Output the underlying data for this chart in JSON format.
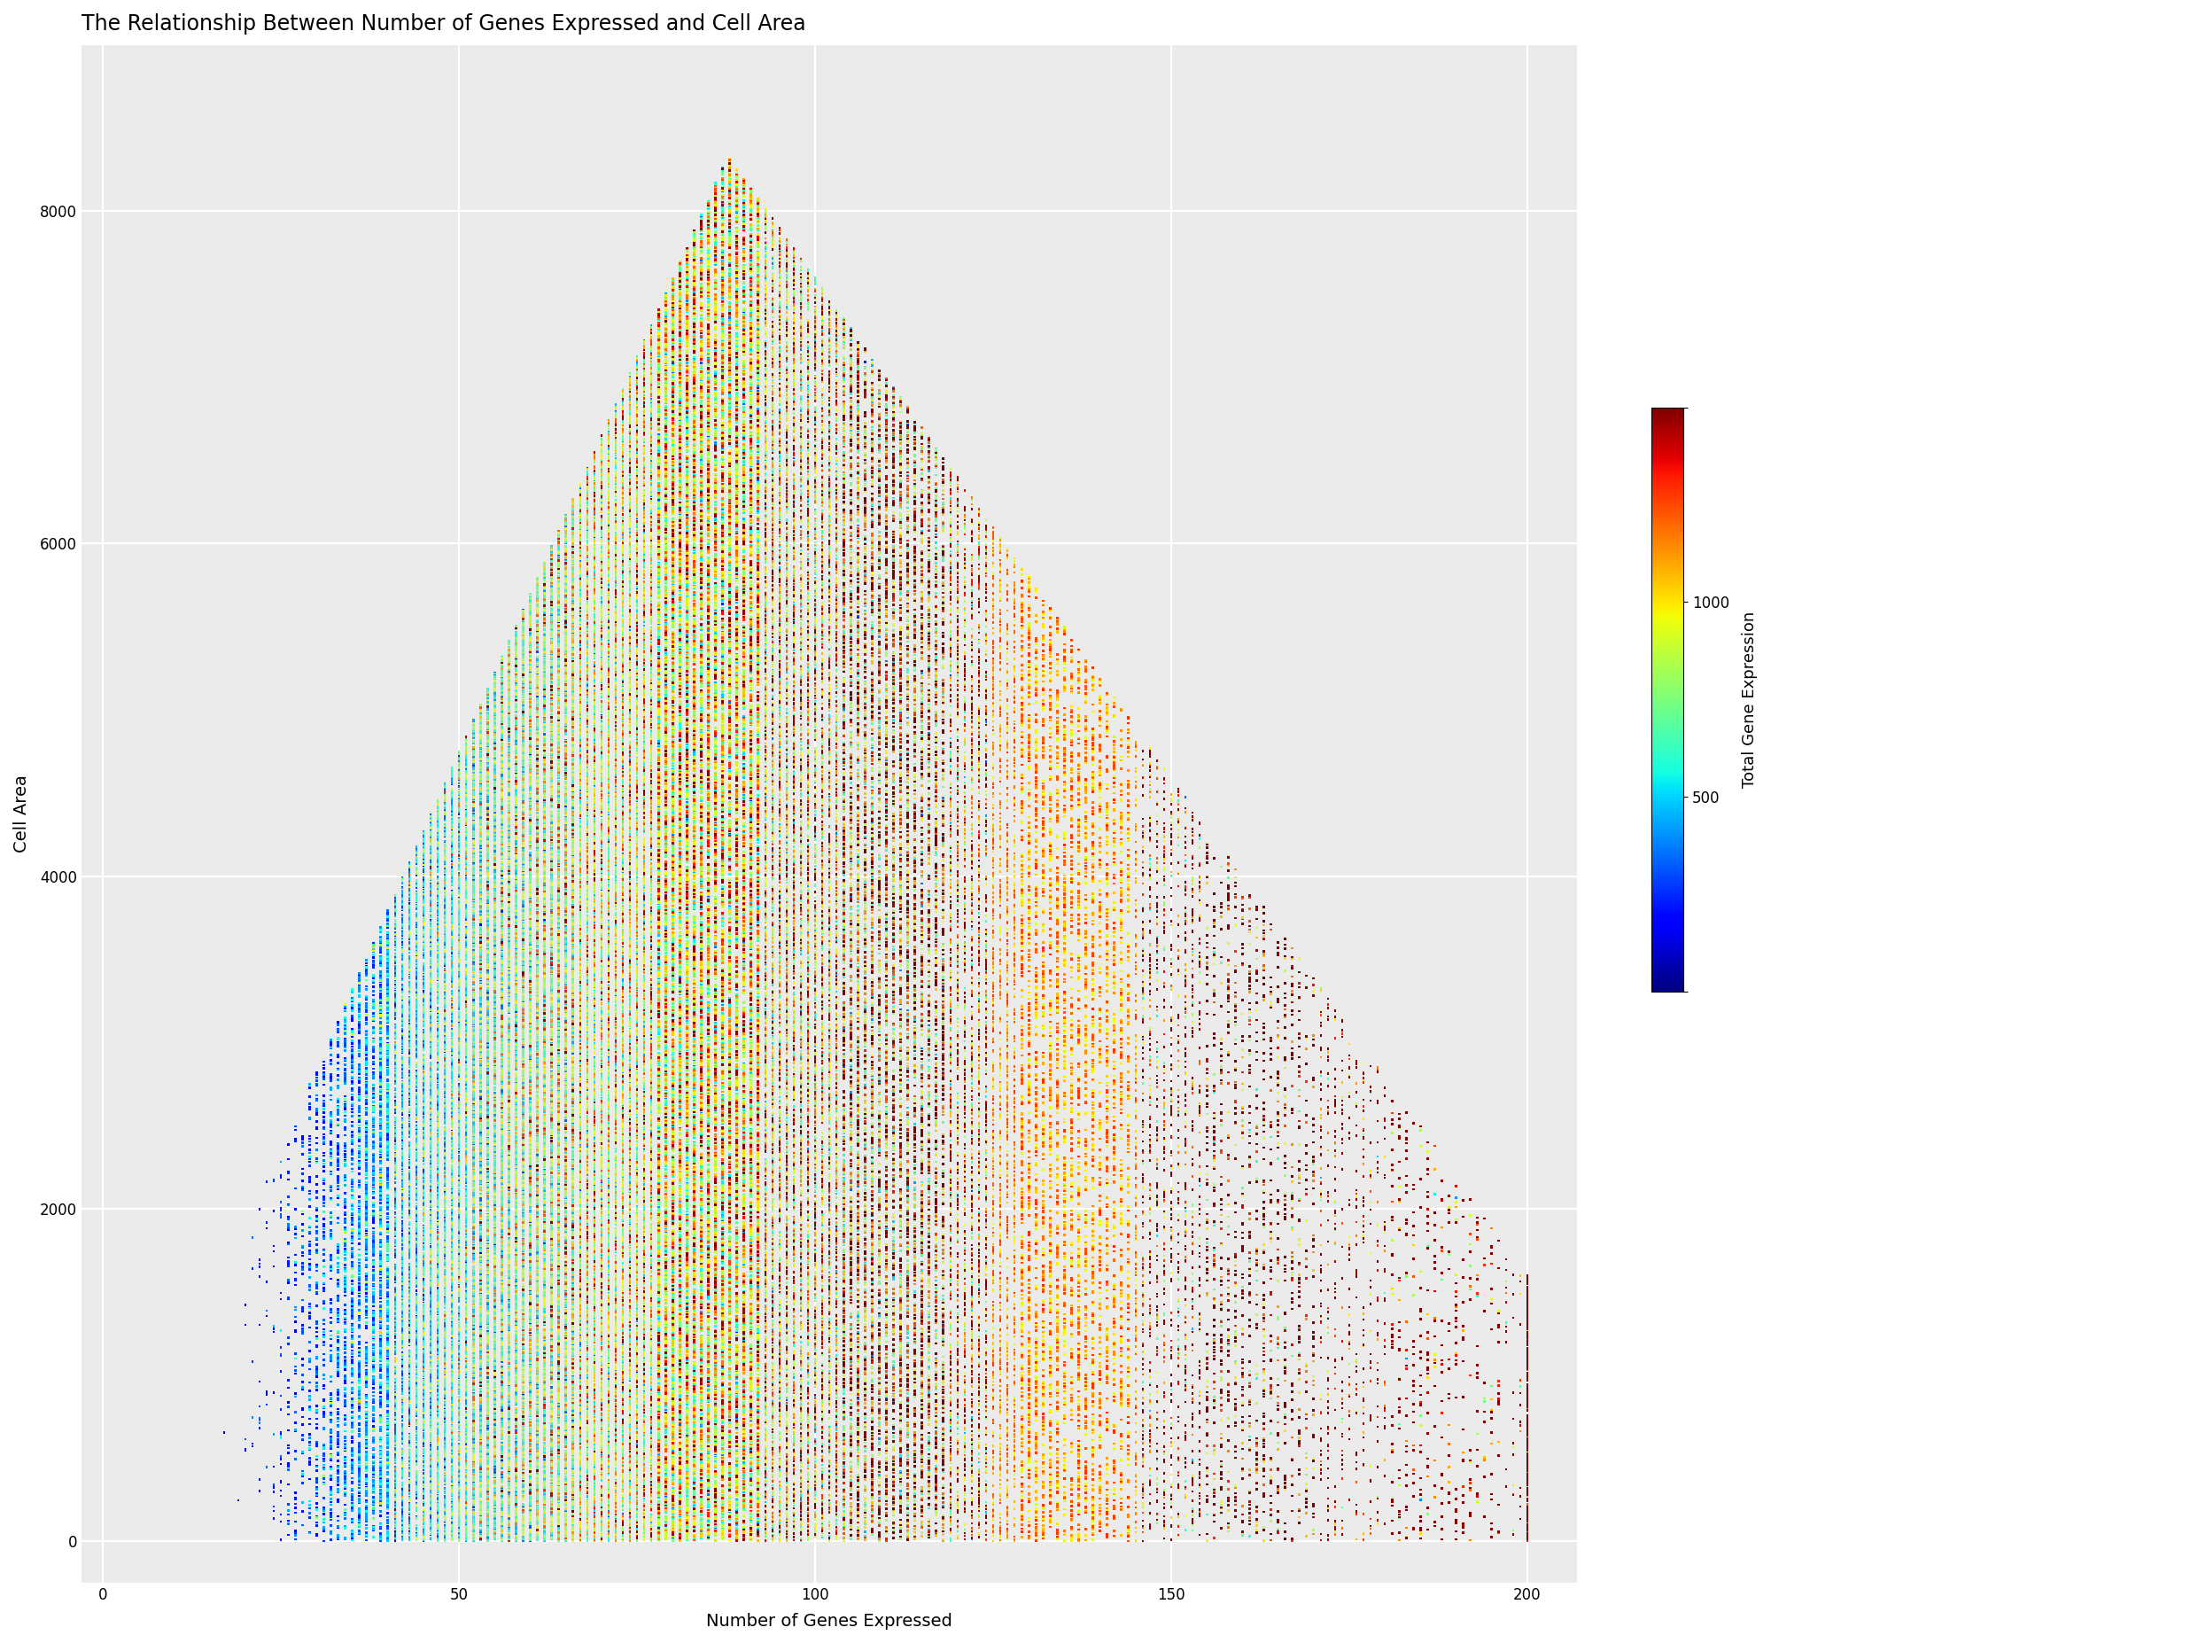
{
  "title": "The Relationship Between Number of Genes Expressed and Cell Area",
  "xlabel": "Number of Genes Expressed",
  "ylabel": "Cell Area",
  "colorbar_label": "Total Gene Expression",
  "xlim": [
    -3,
    207
  ],
  "ylim": [
    -250,
    9000
  ],
  "xticks": [
    0,
    50,
    100,
    150,
    200
  ],
  "yticks": [
    0,
    2000,
    4000,
    6000,
    8000
  ],
  "background_color": "#EBEBEB",
  "n_cells": 120000,
  "seed": 123,
  "title_fontsize": 17,
  "axis_label_fontsize": 14,
  "tick_fontsize": 12,
  "colorbar_fontsize": 13,
  "marker_size": 3.5,
  "cmap": "jet",
  "vmin": 0,
  "vmax": 1500,
  "colorbar_ticks": [
    0,
    500,
    1000,
    1500
  ],
  "colorbar_tick_labels": [
    "",
    "500",
    "1000",
    ""
  ]
}
